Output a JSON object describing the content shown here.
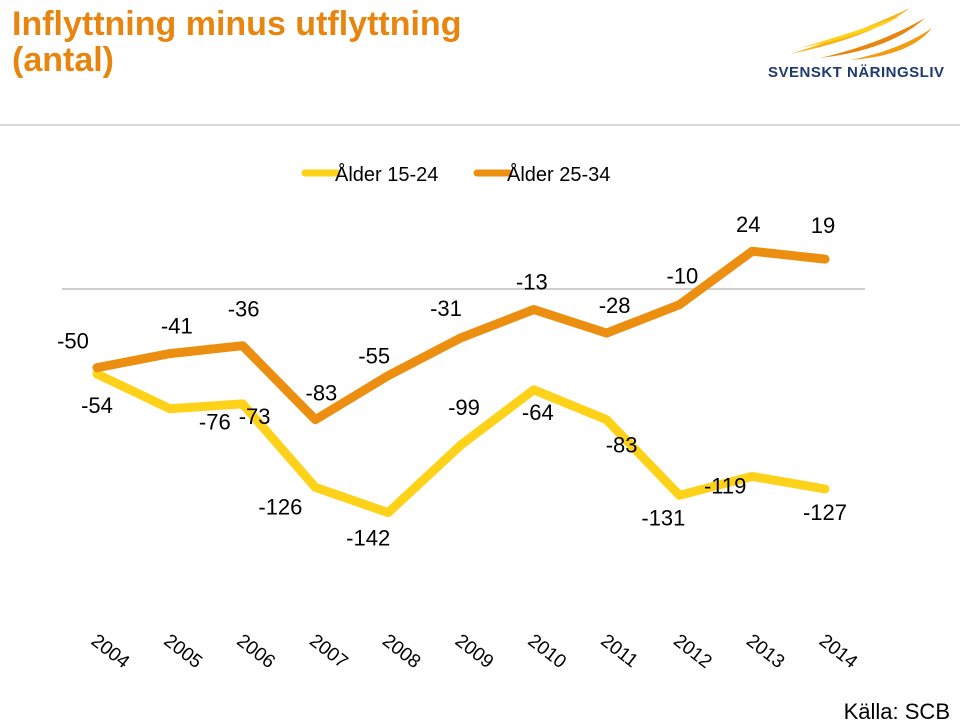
{
  "header": {
    "title_line1": "Inflyttning minus utflyttning",
    "title_line2": "(antal)",
    "logo_text": "SVENSKT NÄRINGSLIV"
  },
  "source": "Källa: SCB",
  "colors": {
    "title": "#e8850e",
    "series1": "#ffd21a",
    "series2": "#ec8f10",
    "zero_line": "#bfbfbf"
  },
  "chart_data": {
    "type": "line",
    "categories": [
      "2004",
      "2005",
      "2006",
      "2007",
      "2008",
      "2009",
      "2010",
      "2011",
      "2012",
      "2013",
      "2014"
    ],
    "series": [
      {
        "name": "Ålder 15-24",
        "values": [
          -54,
          -76,
          -73,
          -126,
          -142,
          -99,
          -64,
          -83,
          -131,
          -119,
          -127
        ]
      },
      {
        "name": "Ålder 25-34",
        "values": [
          -50,
          -41,
          -36,
          -83,
          -55,
          -31,
          -13,
          -28,
          -10,
          24,
          19
        ]
      }
    ],
    "data_labels": true,
    "legend": "top",
    "grid": false,
    "zero_line": true
  }
}
